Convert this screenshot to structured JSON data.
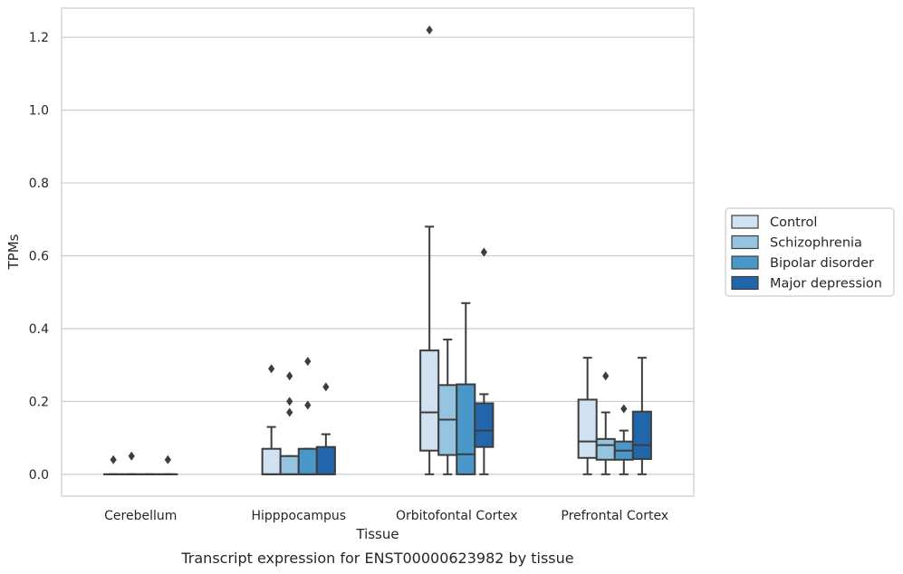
{
  "caption": "Transcript expression for ENST00000623982 by tissue",
  "chart_data": {
    "type": "box",
    "xlabel": "Tissue",
    "ylabel": "TPMs",
    "ylim": [
      -0.06,
      1.28
    ],
    "yticks": [
      0.0,
      0.2,
      0.4,
      0.6,
      0.8,
      1.0,
      1.2
    ],
    "ytick_labels": [
      "0.0",
      "0.2",
      "0.4",
      "0.6",
      "0.8",
      "1.0",
      "1.2"
    ],
    "grid": "horizontal",
    "legend_position": "right",
    "categories": [
      "Cerebellum",
      "Hipppocampus",
      "Orbitofontal Cortex",
      "Prefrontal Cortex"
    ],
    "series": [
      {
        "name": "Control",
        "color": "#d0e1f2",
        "boxes": [
          {
            "whislo": 0.0,
            "q1": 0.0,
            "med": 0.0,
            "q3": 0.0,
            "whishi": 0.0,
            "fliers": [
              0.04
            ]
          },
          {
            "whislo": 0.0,
            "q1": 0.0,
            "med": 0.0,
            "q3": 0.07,
            "whishi": 0.13,
            "fliers": [
              0.29
            ]
          },
          {
            "whislo": 0.0,
            "q1": 0.065,
            "med": 0.17,
            "q3": 0.34,
            "whishi": 0.68,
            "fliers": [
              1.22
            ]
          },
          {
            "whislo": 0.0,
            "q1": 0.045,
            "med": 0.09,
            "q3": 0.205,
            "whishi": 0.32,
            "fliers": []
          }
        ]
      },
      {
        "name": "Schizophrenia",
        "color": "#94c4df",
        "boxes": [
          {
            "whislo": 0.0,
            "q1": 0.0,
            "med": 0.0,
            "q3": 0.0,
            "whishi": 0.0,
            "fliers": [
              0.05
            ]
          },
          {
            "whislo": 0.0,
            "q1": 0.0,
            "med": 0.0,
            "q3": 0.05,
            "whishi": 0.05,
            "fliers": [
              0.17,
              0.2,
              0.27
            ]
          },
          {
            "whislo": 0.0,
            "q1": 0.053,
            "med": 0.15,
            "q3": 0.245,
            "whishi": 0.37,
            "fliers": []
          },
          {
            "whislo": 0.0,
            "q1": 0.04,
            "med": 0.08,
            "q3": 0.097,
            "whishi": 0.17,
            "fliers": [
              0.27
            ]
          }
        ]
      },
      {
        "name": "Bipolar disorder",
        "color": "#4a98c9",
        "boxes": [
          {
            "whislo": 0.0,
            "q1": 0.0,
            "med": 0.0,
            "q3": 0.0,
            "whishi": 0.0,
            "fliers": []
          },
          {
            "whislo": 0.0,
            "q1": 0.0,
            "med": 0.0,
            "q3": 0.07,
            "whishi": 0.07,
            "fliers": [
              0.19,
              0.31
            ]
          },
          {
            "whislo": 0.0,
            "q1": 0.0,
            "med": 0.055,
            "q3": 0.247,
            "whishi": 0.47,
            "fliers": []
          },
          {
            "whislo": 0.0,
            "q1": 0.04,
            "med": 0.065,
            "q3": 0.09,
            "whishi": 0.12,
            "fliers": [
              0.18
            ]
          }
        ]
      },
      {
        "name": "Major depression",
        "color": "#2165ab",
        "boxes": [
          {
            "whislo": 0.0,
            "q1": 0.0,
            "med": 0.0,
            "q3": 0.0,
            "whishi": 0.0,
            "fliers": [
              0.04
            ]
          },
          {
            "whislo": 0.0,
            "q1": 0.0,
            "med": 0.0,
            "q3": 0.075,
            "whishi": 0.11,
            "fliers": [
              0.24
            ]
          },
          {
            "whislo": 0.0,
            "q1": 0.075,
            "med": 0.12,
            "q3": 0.195,
            "whishi": 0.22,
            "fliers": [
              0.61
            ]
          },
          {
            "whislo": 0.0,
            "q1": 0.042,
            "med": 0.08,
            "q3": 0.172,
            "whishi": 0.32,
            "fliers": []
          }
        ]
      }
    ]
  }
}
